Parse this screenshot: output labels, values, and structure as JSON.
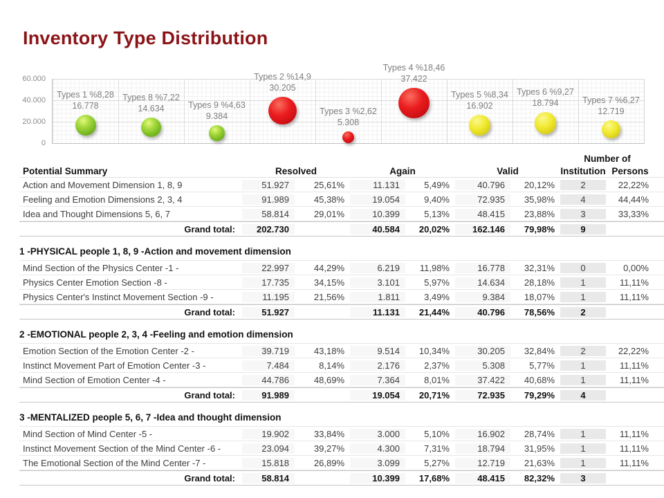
{
  "title": "Inventory Type Distribution",
  "colors": {
    "title": "#8B1418",
    "bubble_green": "#8CC63C",
    "bubble_red": "#E01119",
    "bubble_yellow": "#EDE52F",
    "label_gray": "#7E7E7E"
  },
  "chart_data": {
    "type": "bubble",
    "title": "",
    "ylabel": "",
    "xlabel": "",
    "ylim": [
      0,
      60000
    ],
    "y_ticks": [
      "60.000",
      "40.000",
      "20.000",
      "0"
    ],
    "grid": true,
    "legend": false,
    "points": [
      {
        "name": "Types 1",
        "label": "Types 1 %8,28",
        "value_label": "16.778",
        "value": 16778,
        "percent": 8.28,
        "color": "green"
      },
      {
        "name": "Types 8",
        "label": "Types 8 %7,22",
        "value_label": "14.634",
        "value": 14634,
        "percent": 7.22,
        "color": "green"
      },
      {
        "name": "Types 9",
        "label": "Types 9 %4,63",
        "value_label": "9.384",
        "value": 9384,
        "percent": 4.63,
        "color": "green"
      },
      {
        "name": "Types 2",
        "label": "Types 2 %14,9",
        "value_label": "30.205",
        "value": 30205,
        "percent": 14.9,
        "color": "red"
      },
      {
        "name": "Types 3",
        "label": "Types 3 %2,62",
        "value_label": "5.308",
        "value": 5308,
        "percent": 2.62,
        "color": "red"
      },
      {
        "name": "Types 4",
        "label": "Types 4 %18,46",
        "value_label": "37.422",
        "value": 37422,
        "percent": 18.46,
        "color": "red"
      },
      {
        "name": "Types 5",
        "label": "Types 5 %8,34",
        "value_label": "16.902",
        "value": 16902,
        "percent": 8.34,
        "color": "yellow"
      },
      {
        "name": "Types 6",
        "label": "Types 6 %9,27",
        "value_label": "18.794",
        "value": 18794,
        "percent": 9.27,
        "color": "yellow"
      },
      {
        "name": "Types 7",
        "label": "Types 7 %6,27",
        "value_label": "12.719",
        "value": 12719,
        "percent": 6.27,
        "color": "yellow"
      }
    ]
  },
  "table": {
    "header": {
      "name": "Potential Summary",
      "resolved": "Resolved",
      "again": "Again",
      "valid": "Valid",
      "number_of": "Number of",
      "institution": "Institution",
      "persons": "Persons"
    },
    "grand_total_label": "Grand total:",
    "summary": {
      "rows": [
        {
          "name": "Action and Movement Dimension 1, 8, 9",
          "cells": [
            "51.927",
            "25,61%",
            "11.131",
            "5,49%",
            "40.796",
            "20,12%",
            "2",
            "22,22%"
          ]
        },
        {
          "name": "Feeling and Emotion Dimensions 2, 3, 4",
          "cells": [
            "91.989",
            "45,38%",
            "19.054",
            "9,40%",
            "72.935",
            "35,98%",
            "4",
            "44,44%"
          ]
        },
        {
          "name": "Idea and Thought Dimensions 5, 6, 7",
          "cells": [
            "58.814",
            "29,01%",
            "10.399",
            "5,13%",
            "48.415",
            "23,88%",
            "3",
            "33,33%"
          ]
        }
      ],
      "grand_total": [
        "202.730",
        "",
        "40.584",
        "20,02%",
        "162.146",
        "79,98%",
        "9",
        ""
      ]
    },
    "sections": [
      {
        "title": "1 -PHYSICAL people 1, 8, 9 -Action and movement dimension",
        "rows": [
          {
            "name": "Mind Section of the Physics Center -1 -",
            "cells": [
              "22.997",
              "44,29%",
              "6.219",
              "11,98%",
              "16.778",
              "32,31%",
              "0",
              "0,00%"
            ]
          },
          {
            "name": "Physics Center Emotion Section -8 -",
            "cells": [
              "17.735",
              "34,15%",
              "3.101",
              "5,97%",
              "14.634",
              "28,18%",
              "1",
              "11,11%"
            ]
          },
          {
            "name": "Physics Center's Instinct Movement Section -9 -",
            "cells": [
              "11.195",
              "21,56%",
              "1.811",
              "3,49%",
              "9.384",
              "18,07%",
              "1",
              "11,11%"
            ]
          }
        ],
        "grand_total": [
          "51.927",
          "",
          "11.131",
          "21,44%",
          "40.796",
          "78,56%",
          "2",
          ""
        ]
      },
      {
        "title": "2 -EMOTIONAL people 2, 3, 4 -Feeling and emotion dimension",
        "rows": [
          {
            "name": "Emotion Section of the Emotion Center -2 -",
            "cells": [
              "39.719",
              "43,18%",
              "9.514",
              "10,34%",
              "30.205",
              "32,84%",
              "2",
              "22,22%"
            ]
          },
          {
            "name": "Instinct Movement Part of Emotion Center -3 -",
            "cells": [
              "7.484",
              "8,14%",
              "2.176",
              "2,37%",
              "5.308",
              "5,77%",
              "1",
              "11,11%"
            ]
          },
          {
            "name": "Mind Section of Emotion Center -4 -",
            "cells": [
              "44.786",
              "48,69%",
              "7.364",
              "8,01%",
              "37.422",
              "40,68%",
              "1",
              "11,11%"
            ]
          }
        ],
        "grand_total": [
          "91.989",
          "",
          "19.054",
          "20,71%",
          "72.935",
          "79,29%",
          "4",
          ""
        ]
      },
      {
        "title": "3 -MENTALIZED people 5, 6, 7 -Idea and thought dimension",
        "rows": [
          {
            "name": "Mind Section of Mind Center -5 -",
            "cells": [
              "19.902",
              "33,84%",
              "3.000",
              "5,10%",
              "16.902",
              "28,74%",
              "1",
              "11,11%"
            ]
          },
          {
            "name": "Instinct Movement Section of the Mind Center -6 -",
            "cells": [
              "23.094",
              "39,27%",
              "4.300",
              "7,31%",
              "18.794",
              "31,95%",
              "1",
              "11,11%"
            ]
          },
          {
            "name": "The Emotional Section of the Mind Center -7 -",
            "cells": [
              "15.818",
              "26,89%",
              "3.099",
              "5,27%",
              "12.719",
              "21,63%",
              "1",
              "11,11%"
            ]
          }
        ],
        "grand_total": [
          "58.814",
          "",
          "10.399",
          "17,68%",
          "48.415",
          "82,32%",
          "3",
          ""
        ]
      }
    ]
  }
}
